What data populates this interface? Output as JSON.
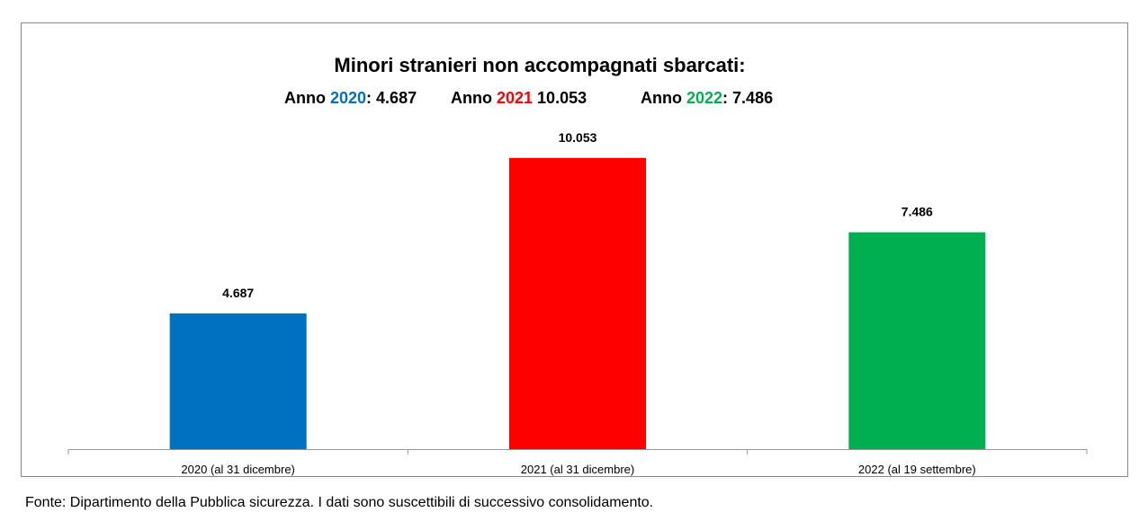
{
  "chart_data": {
    "type": "bar",
    "title": "Minori stranieri non accompagnati sbarcati:",
    "subtitle": [
      [
        "Anno ",
        "2020",
        ": 4.687"
      ],
      [
        "Anno ",
        "2021",
        " 10.053"
      ],
      [
        "Anno ",
        "2022",
        ": 7.486"
      ]
    ],
    "categories": [
      "2020 (al 31 dicembre)",
      "2021 (al 31 dicembre)",
      "2022 (al 19 settembre)"
    ],
    "values": [
      4687,
      10053,
      7486
    ],
    "value_labels": [
      "4.687",
      "10.053",
      "7.486"
    ],
    "colors": [
      "#0070c0",
      "#ff0000",
      "#00b050"
    ],
    "ylim": [
      0,
      12000
    ],
    "source": "Fonte: Dipartimento della Pubblica sicurezza. I dati sono suscettibili di successivo consolidamento."
  }
}
